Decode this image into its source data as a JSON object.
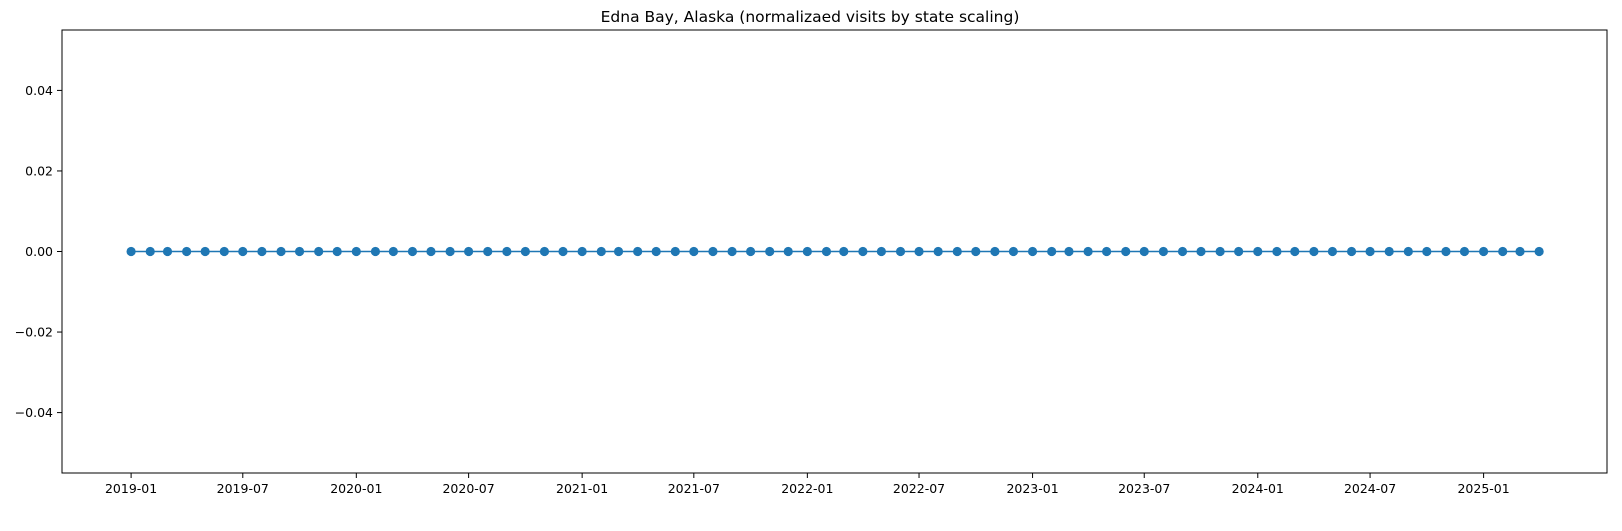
{
  "chart_data": {
    "type": "line",
    "title": "Edna Bay, Alaska (normalizaed visits by state scaling)",
    "xlabel": "",
    "ylabel": "",
    "x_start": "2019-01",
    "x_end": "2025-04",
    "x_frequency": "monthly",
    "ylim": [
      -0.055,
      0.055
    ],
    "xlim": [
      "2018-09-11",
      "2025-07-20"
    ],
    "x_ticks": [
      "2019-01",
      "2019-07",
      "2020-01",
      "2020-07",
      "2021-01",
      "2021-07",
      "2022-01",
      "2022-07",
      "2023-01",
      "2023-07",
      "2024-01",
      "2024-07",
      "2025-01"
    ],
    "y_ticks": [
      0.04,
      0.02,
      0.0,
      -0.02,
      -0.04
    ],
    "y_tick_labels": [
      "0.04",
      "0.02",
      "0.00",
      "−0.02",
      "−0.04"
    ],
    "series": [
      {
        "values": [
          0,
          0,
          0,
          0,
          0,
          0,
          0,
          0,
          0,
          0,
          0,
          0,
          0,
          0,
          0,
          0,
          0,
          0,
          0,
          0,
          0,
          0,
          0,
          0,
          0,
          0,
          0,
          0,
          0,
          0,
          0,
          0,
          0,
          0,
          0,
          0,
          0,
          0,
          0,
          0,
          0,
          0,
          0,
          0,
          0,
          0,
          0,
          0,
          0,
          0,
          0,
          0,
          0,
          0,
          0,
          0,
          0,
          0,
          0,
          0,
          0,
          0,
          0,
          0,
          0,
          0,
          0,
          0,
          0,
          0,
          0,
          0,
          0,
          0,
          0,
          0
        ]
      }
    ],
    "grid": false,
    "legend": "none",
    "line_color": "#1f77b4",
    "marker": "circle"
  }
}
